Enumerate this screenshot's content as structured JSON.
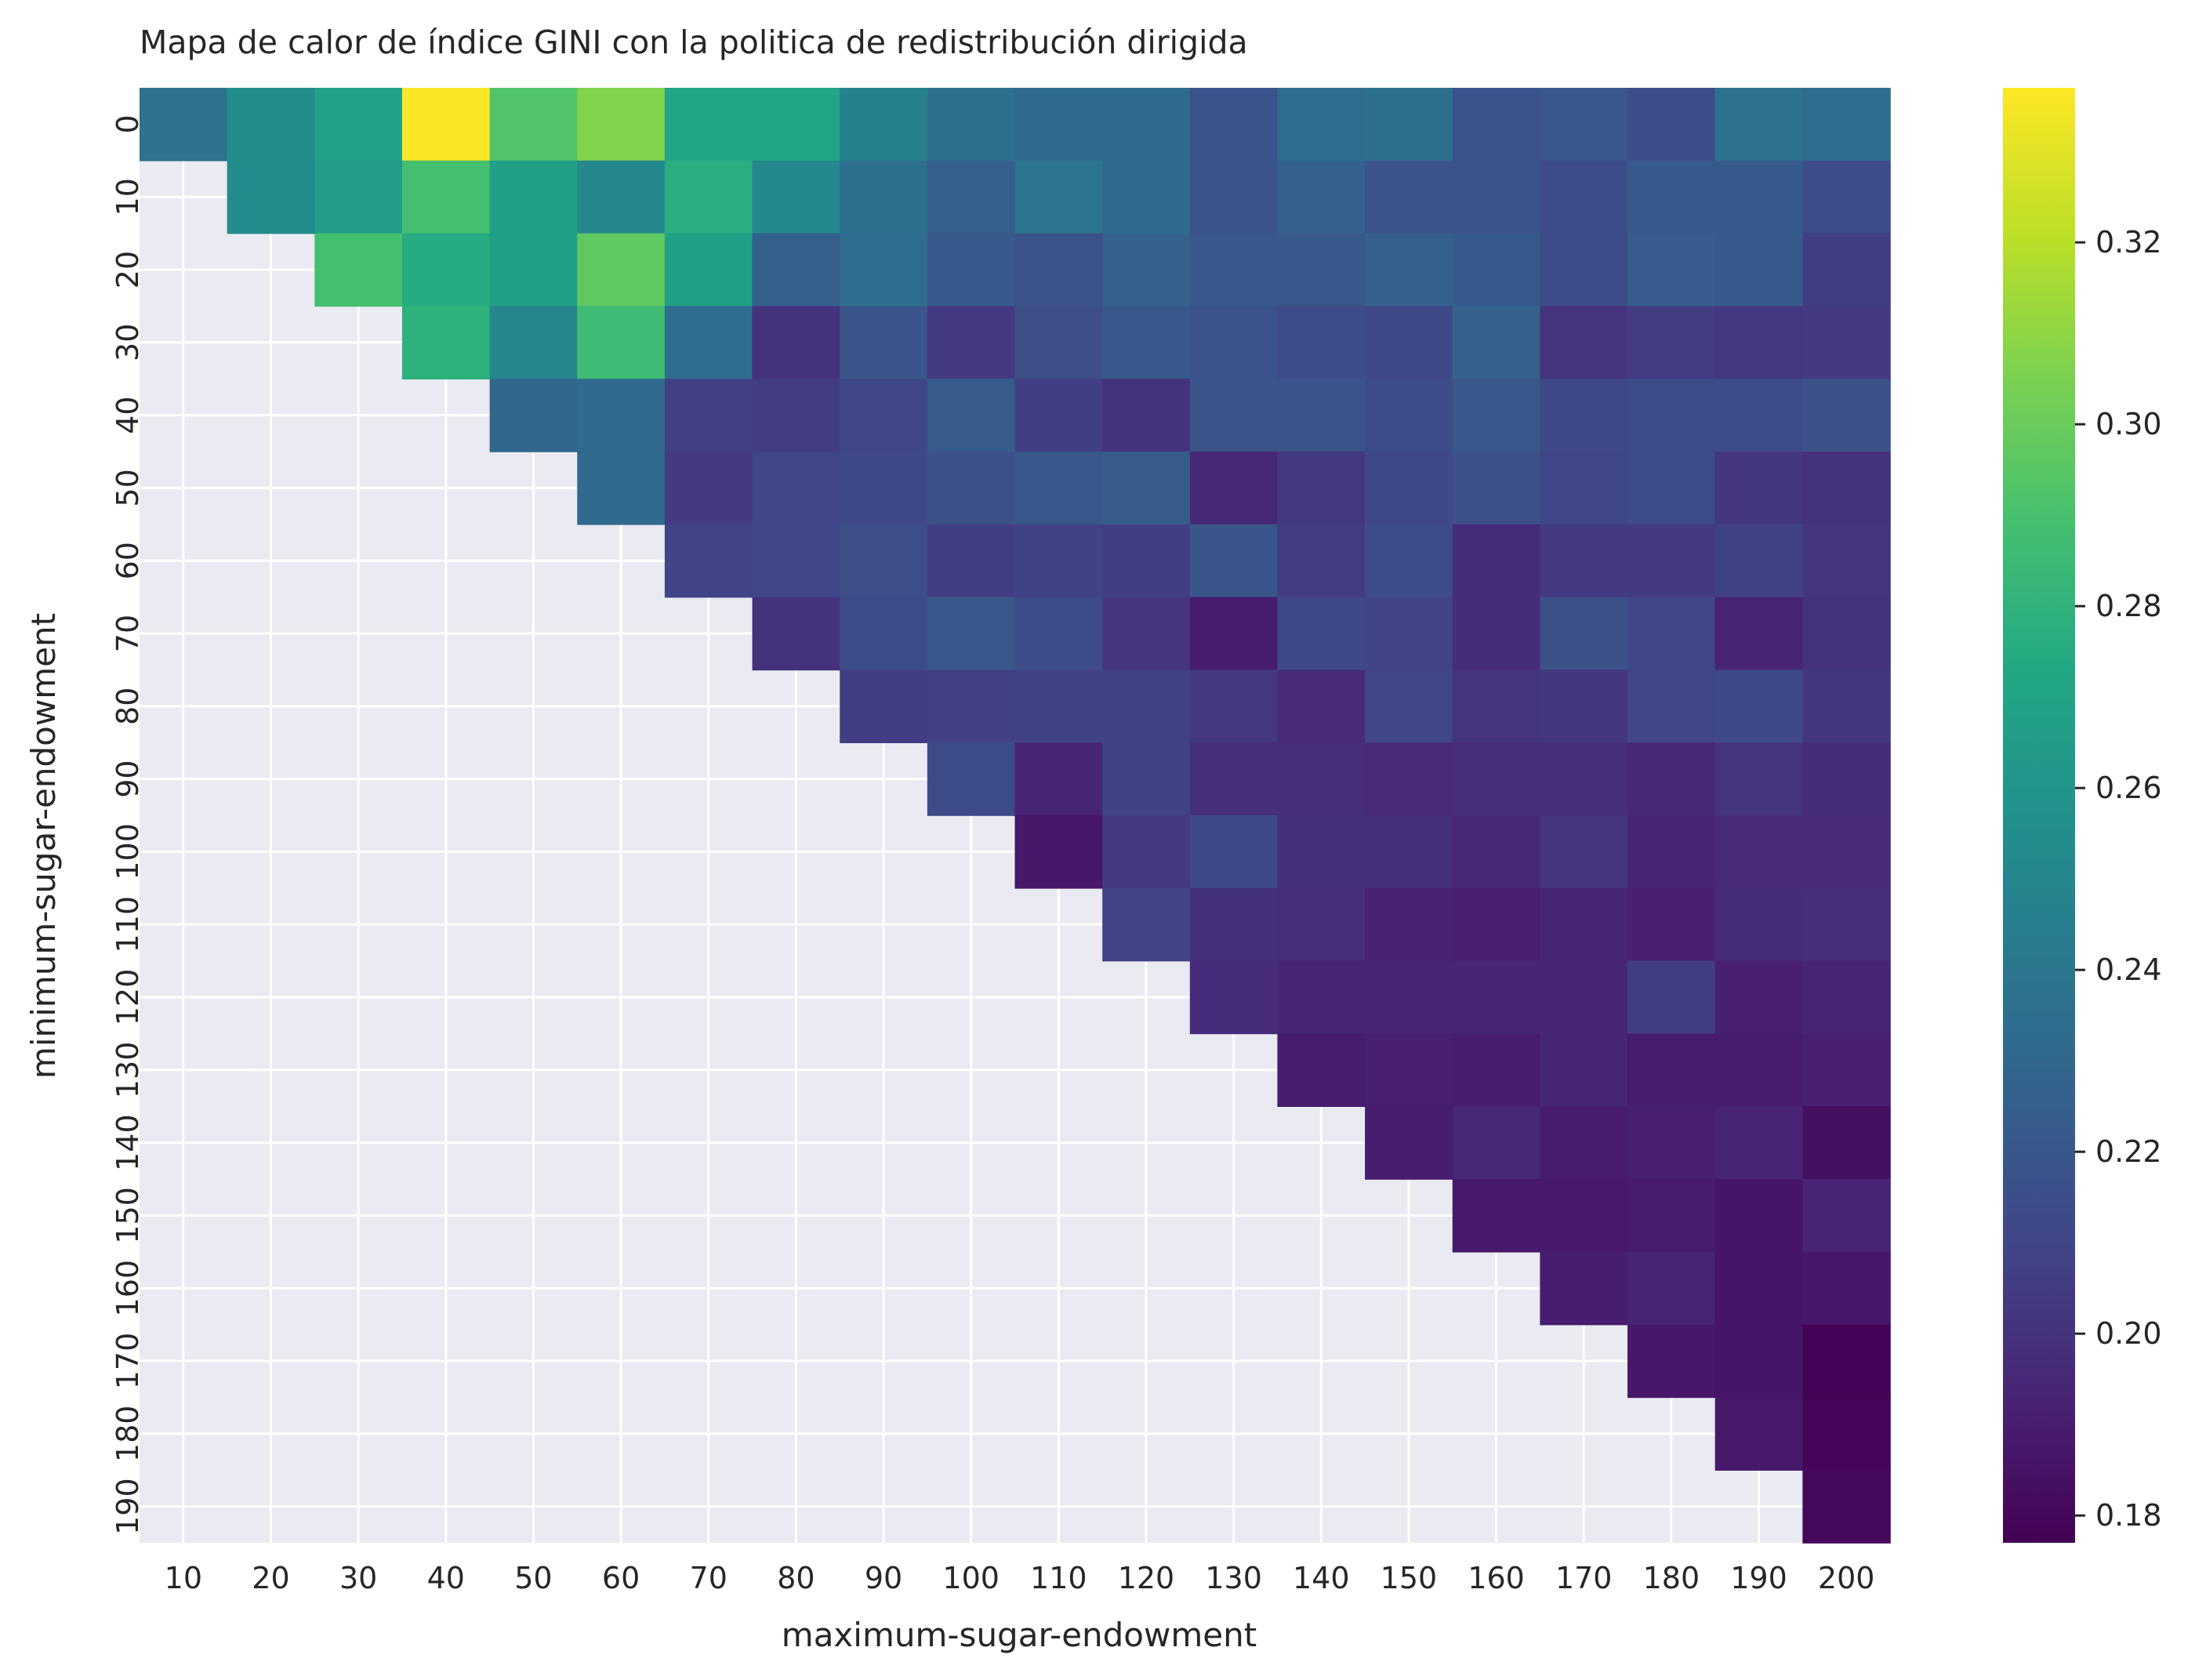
{
  "chart_data": {
    "type": "heatmap",
    "title": "Mapa de calor de índice GINI con la politica de redistribución dirigida",
    "xlabel": "maximum-sugar-endowment",
    "ylabel": "minimum-sugar-endowment",
    "x_categories": [
      "10",
      "20",
      "30",
      "40",
      "50",
      "60",
      "70",
      "80",
      "90",
      "100",
      "110",
      "120",
      "130",
      "140",
      "150",
      "160",
      "170",
      "180",
      "190",
      "200"
    ],
    "y_categories": [
      "0",
      "10",
      "20",
      "30",
      "40",
      "50",
      "60",
      "70",
      "80",
      "90",
      "100",
      "110",
      "120",
      "130",
      "140",
      "150",
      "160",
      "170",
      "180",
      "190"
    ],
    "colormap": "viridis",
    "colorbar": {
      "min": 0.177,
      "max": 0.337,
      "ticks": [
        "0.18",
        "0.20",
        "0.22",
        "0.24",
        "0.26",
        "0.28",
        "0.30",
        "0.32"
      ]
    },
    "missing_color": "#eaeaf2",
    "grid": true,
    "values": [
      [
        0.237,
        0.254,
        0.268,
        0.336,
        0.293,
        0.307,
        0.27,
        0.27,
        0.247,
        0.236,
        0.232,
        0.232,
        0.218,
        0.234,
        0.236,
        0.218,
        0.22,
        0.214,
        0.237,
        0.234
      ],
      [
        null,
        0.254,
        0.265,
        0.289,
        0.267,
        0.251,
        0.277,
        0.252,
        0.236,
        0.225,
        0.239,
        0.232,
        0.218,
        0.226,
        0.217,
        0.218,
        0.214,
        0.222,
        0.222,
        0.213
      ],
      [
        null,
        null,
        0.289,
        0.275,
        0.267,
        0.297,
        0.267,
        0.225,
        0.234,
        0.222,
        0.217,
        0.227,
        0.22,
        0.22,
        0.225,
        0.222,
        0.214,
        0.224,
        0.222,
        0.206
      ],
      [
        null,
        null,
        null,
        0.279,
        0.249,
        0.286,
        0.233,
        0.2,
        0.219,
        0.204,
        0.215,
        0.221,
        0.218,
        0.214,
        0.212,
        0.227,
        0.201,
        0.205,
        0.203,
        0.204
      ],
      [
        null,
        null,
        null,
        null,
        0.23,
        0.232,
        0.207,
        0.205,
        0.211,
        0.223,
        0.206,
        0.2,
        0.217,
        0.218,
        0.214,
        0.22,
        0.212,
        0.213,
        0.213,
        0.216
      ],
      [
        null,
        null,
        null,
        null,
        null,
        0.232,
        0.204,
        0.21,
        0.212,
        0.216,
        0.22,
        0.223,
        0.195,
        0.203,
        0.212,
        0.216,
        0.211,
        0.213,
        0.202,
        0.2
      ],
      [
        null,
        null,
        null,
        null,
        null,
        null,
        0.209,
        0.211,
        0.215,
        0.206,
        0.208,
        0.206,
        0.219,
        0.205,
        0.213,
        0.197,
        0.204,
        0.204,
        0.208,
        0.201
      ],
      [
        null,
        null,
        null,
        null,
        null,
        null,
        null,
        0.2,
        0.213,
        0.22,
        0.213,
        0.201,
        0.19,
        0.212,
        0.209,
        0.197,
        0.216,
        0.211,
        0.193,
        0.2
      ],
      [
        null,
        null,
        null,
        null,
        null,
        null,
        null,
        null,
        0.206,
        0.207,
        0.208,
        0.208,
        0.203,
        0.196,
        0.21,
        0.201,
        0.202,
        0.21,
        0.212,
        0.202
      ],
      [
        null,
        null,
        null,
        null,
        null,
        null,
        null,
        null,
        null,
        0.213,
        0.193,
        0.208,
        0.198,
        0.198,
        0.196,
        0.198,
        0.198,
        0.195,
        0.201,
        0.197
      ],
      [
        null,
        null,
        null,
        null,
        null,
        null,
        null,
        null,
        null,
        null,
        0.187,
        0.204,
        0.212,
        0.199,
        0.199,
        0.195,
        0.201,
        0.194,
        0.196,
        0.196
      ],
      [
        null,
        null,
        null,
        null,
        null,
        null,
        null,
        null,
        null,
        null,
        null,
        0.209,
        0.199,
        0.198,
        0.192,
        0.191,
        0.194,
        0.191,
        0.197,
        0.198
      ],
      [
        null,
        null,
        null,
        null,
        null,
        null,
        null,
        null,
        null,
        null,
        null,
        null,
        0.197,
        0.194,
        0.194,
        0.194,
        0.194,
        0.206,
        0.191,
        0.193
      ],
      [
        null,
        null,
        null,
        null,
        null,
        null,
        null,
        null,
        null,
        null,
        null,
        null,
        null,
        0.189,
        0.191,
        0.19,
        0.194,
        0.189,
        0.189,
        0.191
      ],
      [
        null,
        null,
        null,
        null,
        null,
        null,
        null,
        null,
        null,
        null,
        null,
        null,
        null,
        null,
        0.19,
        0.195,
        0.189,
        0.191,
        0.193,
        0.184
      ],
      [
        null,
        null,
        null,
        null,
        null,
        null,
        null,
        null,
        null,
        null,
        null,
        null,
        null,
        null,
        null,
        0.188,
        0.188,
        0.189,
        0.186,
        0.193
      ],
      [
        null,
        null,
        null,
        null,
        null,
        null,
        null,
        null,
        null,
        null,
        null,
        null,
        null,
        null,
        null,
        null,
        0.19,
        0.193,
        0.186,
        0.187
      ],
      [
        null,
        null,
        null,
        null,
        null,
        null,
        null,
        null,
        null,
        null,
        null,
        null,
        null,
        null,
        null,
        null,
        null,
        0.187,
        0.186,
        0.178
      ],
      [
        null,
        null,
        null,
        null,
        null,
        null,
        null,
        null,
        null,
        null,
        null,
        null,
        null,
        null,
        null,
        null,
        null,
        null,
        0.188,
        0.179
      ],
      [
        null,
        null,
        null,
        null,
        null,
        null,
        null,
        null,
        null,
        null,
        null,
        null,
        null,
        null,
        null,
        null,
        null,
        null,
        null,
        0.18
      ]
    ]
  }
}
